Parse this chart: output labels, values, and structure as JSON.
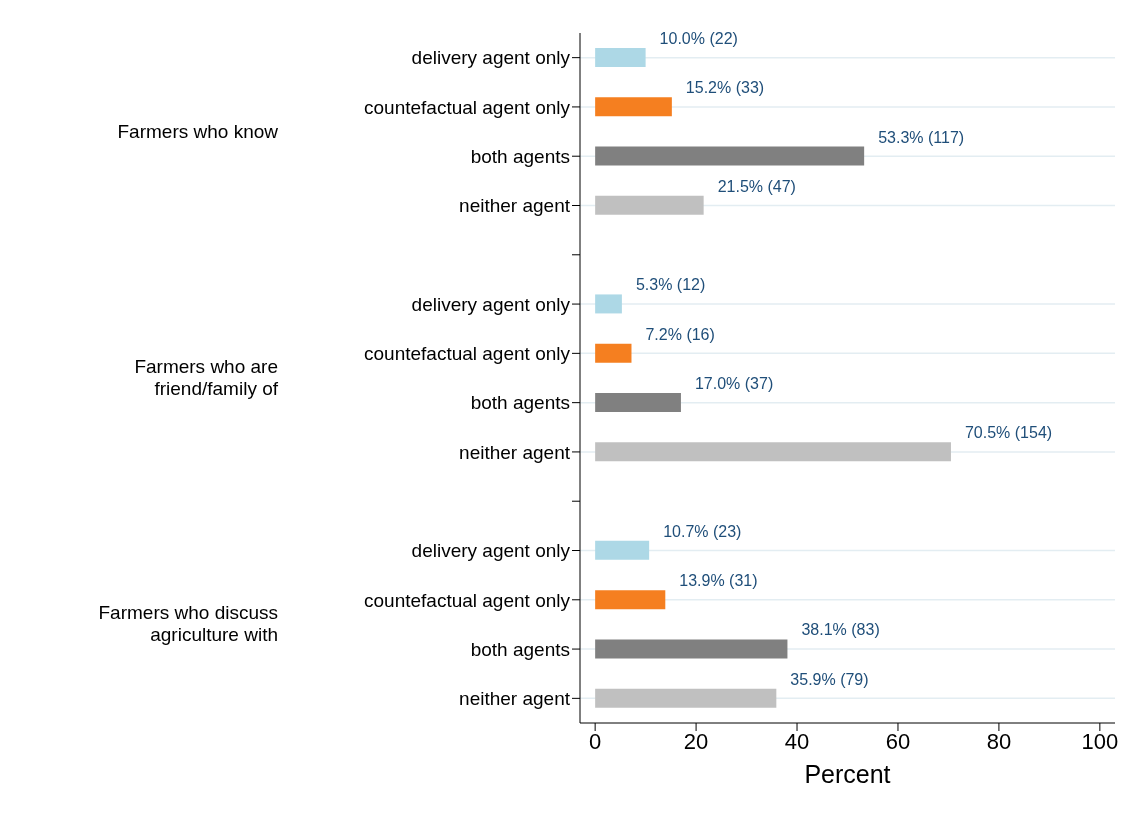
{
  "chart_data": {
    "type": "bar",
    "orientation": "horizontal",
    "categories": [
      "delivery agent only",
      "countefactual agent only",
      "both agents",
      "neither agent",
      null,
      "delivery agent only",
      "countefactual agent only",
      "both agents",
      "neither agent",
      null,
      "delivery agent only",
      "countefactual agent only",
      "both agents",
      "neither agent"
    ],
    "values": [
      10.0,
      15.2,
      53.3,
      21.5,
      null,
      5.3,
      7.2,
      17.0,
      70.5,
      null,
      10.7,
      13.9,
      38.1,
      35.9
    ],
    "colors": [
      "#add8e6",
      "#f57f20",
      "#808080",
      "#c0c0c0",
      "#ffffff",
      "#add8e6",
      "#f57f20",
      "#808080",
      "#c0c0c0",
      "#ffffff",
      "#add8e6",
      "#f57f20",
      "#808080",
      "#c0c0c0"
    ],
    "value_labels": [
      "10.0% (22)",
      "15.2% (33)",
      "53.3% (117)",
      "21.5% (47)",
      null,
      "5.3% (12)",
      "7.2% (16)",
      "17.0% (37)",
      "70.5% (154)",
      null,
      "10.7% (23)",
      "13.9% (31)",
      "38.1% (83)",
      "35.9% (79)"
    ],
    "annotations": [
      "Farmers who know",
      "Farmers who are\nfriend/family of",
      "Farmers who discuss\nagriculture with"
    ],
    "xlabel": "Percent",
    "xlim": [
      -3,
      103
    ],
    "xticks": [
      0,
      20,
      40,
      60,
      80,
      100
    ],
    "grid": "y",
    "legend": false
  }
}
